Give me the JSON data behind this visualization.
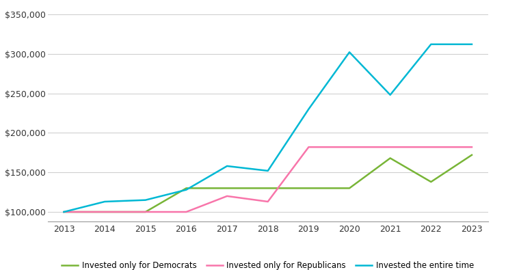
{
  "years": [
    2013,
    2014,
    2015,
    2016,
    2017,
    2018,
    2019,
    2020,
    2021,
    2022,
    2023
  ],
  "democrats": [
    100000,
    100000,
    100000,
    130000,
    130000,
    130000,
    130000,
    130000,
    168000,
    138000,
    172000
  ],
  "republicans": [
    100000,
    100000,
    100000,
    100000,
    120000,
    113000,
    182000,
    182000,
    182000,
    182000,
    182000
  ],
  "entire": [
    100000,
    113000,
    115000,
    128000,
    158000,
    152000,
    230000,
    302000,
    248000,
    312000,
    312000
  ],
  "colors": {
    "democrats": "#78b537",
    "republicans": "#f875aa",
    "entire": "#00b8d4"
  },
  "legend_labels": {
    "democrats": "Invested only for Democrats",
    "republicans": "Invested only for Republicans",
    "entire": "Invested the entire time"
  },
  "ylim": [
    88000,
    362000
  ],
  "yticks": [
    100000,
    150000,
    200000,
    250000,
    300000,
    350000
  ],
  "background_color": "#ffffff",
  "grid_color": "#d0d0d0"
}
